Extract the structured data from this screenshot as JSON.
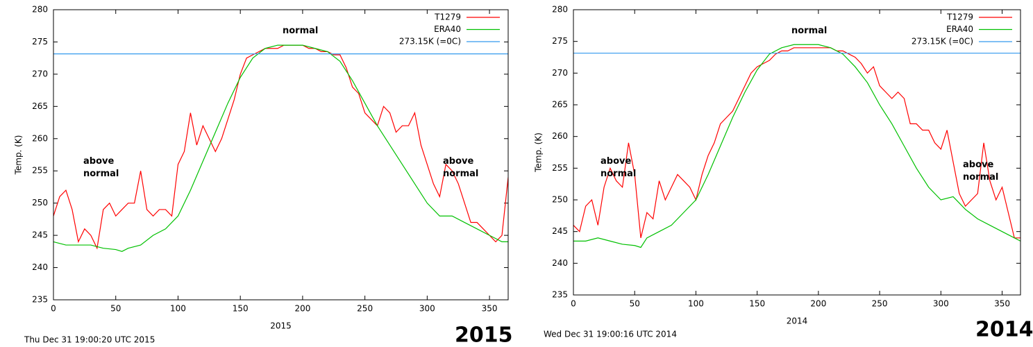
{
  "chart_data": [
    {
      "type": "line",
      "title": "2015",
      "footer": "Thu Dec 31 19:00:20 UTC 2015",
      "xlabel": "2015",
      "ylabel": "Temp. (K)",
      "xlim": [
        0,
        365
      ],
      "xticks": [
        0,
        50,
        100,
        150,
        200,
        250,
        300,
        350
      ],
      "ylim": [
        235,
        280
      ],
      "yticks": [
        235,
        240,
        245,
        250,
        255,
        260,
        265,
        270,
        275,
        280
      ],
      "legend": "top-right",
      "annotations": [
        "normal",
        "above normal",
        "above normal"
      ],
      "series": [
        {
          "name": "T1279",
          "color": "#ff0000",
          "x": [
            0,
            5,
            10,
            15,
            20,
            25,
            30,
            35,
            40,
            45,
            50,
            55,
            60,
            65,
            70,
            75,
            80,
            85,
            90,
            95,
            100,
            105,
            110,
            115,
            120,
            125,
            130,
            135,
            140,
            145,
            150,
            155,
            160,
            165,
            170,
            175,
            180,
            185,
            190,
            195,
            200,
            205,
            210,
            215,
            220,
            225,
            230,
            235,
            240,
            245,
            250,
            255,
            260,
            265,
            270,
            275,
            280,
            285,
            290,
            295,
            300,
            305,
            310,
            315,
            320,
            325,
            330,
            335,
            340,
            345,
            350,
            355,
            360,
            365
          ],
          "values": [
            248,
            251,
            252,
            249,
            244,
            246,
            245,
            243,
            249,
            250,
            248,
            249,
            250,
            250,
            255,
            249,
            248,
            249,
            249,
            248,
            256,
            258,
            264,
            259,
            262,
            260,
            258,
            260,
            263,
            266,
            270,
            272.5,
            273,
            273.5,
            274,
            274,
            274,
            274.5,
            274.5,
            274.5,
            274.5,
            274,
            274,
            273.5,
            273.5,
            273,
            273,
            271,
            268,
            267,
            264,
            263,
            262,
            265,
            264,
            261,
            262,
            262,
            264,
            259,
            256,
            253,
            251,
            256,
            255,
            253,
            250,
            247,
            247,
            246,
            245,
            244,
            245,
            254
          ]
        },
        {
          "name": "ERA40",
          "color": "#00c000",
          "x": [
            0,
            10,
            20,
            30,
            40,
            50,
            55,
            60,
            70,
            80,
            90,
            100,
            110,
            120,
            130,
            140,
            150,
            160,
            170,
            180,
            190,
            200,
            210,
            220,
            230,
            240,
            250,
            260,
            270,
            280,
            290,
            300,
            310,
            320,
            330,
            340,
            350,
            360,
            365
          ],
          "values": [
            244,
            243.5,
            243.5,
            243.5,
            243,
            242.8,
            242.5,
            243,
            243.5,
            245,
            246,
            248,
            252,
            256.5,
            261,
            265.5,
            269.5,
            272.5,
            274,
            274.5,
            274.5,
            274.5,
            274,
            273.5,
            272,
            269,
            265.5,
            262,
            259,
            256,
            253,
            250,
            248,
            248,
            247,
            246,
            245,
            244,
            244
          ]
        },
        {
          "name": "273.15K (=0C)",
          "color": "#3399ee",
          "x": [
            0,
            365
          ],
          "values": [
            273.15,
            273.15
          ]
        }
      ]
    },
    {
      "type": "line",
      "title": "2014",
      "footer": "Wed Dec 31 19:00:16 UTC 2014",
      "xlabel": "2014",
      "ylabel": "Temp. (K)",
      "xlim": [
        0,
        365
      ],
      "xticks": [
        0,
        50,
        100,
        150,
        200,
        250,
        300,
        350
      ],
      "ylim": [
        235,
        280
      ],
      "yticks": [
        235,
        240,
        245,
        250,
        255,
        260,
        265,
        270,
        275,
        280
      ],
      "legend": "top-right",
      "annotations": [
        "normal",
        "above normal",
        "above normal"
      ],
      "series": [
        {
          "name": "T1279",
          "color": "#ff0000",
          "x": [
            0,
            5,
            10,
            15,
            20,
            25,
            30,
            35,
            40,
            45,
            50,
            55,
            60,
            65,
            70,
            75,
            80,
            85,
            90,
            95,
            100,
            105,
            110,
            115,
            120,
            125,
            130,
            135,
            140,
            145,
            150,
            155,
            160,
            165,
            170,
            175,
            180,
            185,
            190,
            195,
            200,
            205,
            210,
            215,
            220,
            225,
            230,
            235,
            240,
            245,
            250,
            255,
            260,
            265,
            270,
            275,
            280,
            285,
            290,
            295,
            300,
            305,
            310,
            315,
            320,
            325,
            330,
            335,
            340,
            345,
            350,
            355,
            360,
            365
          ],
          "values": [
            246,
            245,
            249,
            250,
            246,
            252,
            255,
            253,
            252,
            259,
            254,
            244,
            248,
            247,
            253,
            250,
            252,
            254,
            253,
            252,
            250,
            254,
            257,
            259,
            262,
            263,
            264,
            266,
            268,
            270,
            271,
            271.5,
            272,
            273,
            273.5,
            273.5,
            274,
            274,
            274,
            274,
            274,
            274,
            274,
            273.5,
            273.5,
            273,
            272.5,
            271.5,
            270,
            271,
            268,
            267,
            266,
            267,
            266,
            262,
            262,
            261,
            261,
            259,
            258,
            261,
            256,
            251,
            249,
            250,
            251,
            259,
            253,
            250,
            252,
            248,
            244,
            244
          ]
        },
        {
          "name": "ERA40",
          "color": "#00c000",
          "x": [
            0,
            10,
            20,
            30,
            40,
            50,
            55,
            60,
            70,
            80,
            90,
            100,
            110,
            120,
            130,
            140,
            150,
            160,
            170,
            180,
            190,
            200,
            210,
            220,
            230,
            240,
            250,
            260,
            270,
            280,
            290,
            300,
            310,
            320,
            330,
            340,
            350,
            360,
            365
          ],
          "values": [
            243.5,
            243.5,
            244,
            243.5,
            243,
            242.8,
            242.5,
            244,
            245,
            246,
            248,
            250,
            254,
            258.5,
            263,
            267,
            270.5,
            273,
            274,
            274.5,
            274.5,
            274.5,
            274,
            273,
            271,
            268.5,
            265,
            262,
            258.5,
            255,
            252,
            250,
            250.5,
            248.5,
            247,
            246,
            245,
            244,
            243.5
          ]
        },
        {
          "name": "273.15K (=0C)",
          "color": "#3399ee",
          "x": [
            0,
            365
          ],
          "values": [
            273.15,
            273.15
          ]
        }
      ]
    }
  ]
}
